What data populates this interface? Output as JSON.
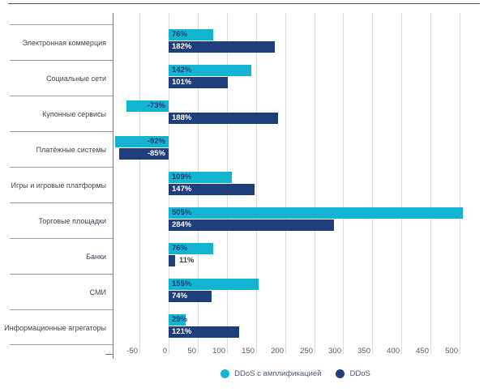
{
  "chart_data": {
    "type": "bar",
    "orientation": "horizontal",
    "title": "",
    "xlabel": "",
    "ylabel": "",
    "unit": "%",
    "categories": [
      "Электронная коммерция",
      "Социальные сети",
      "Купонные сервисы",
      "Платёжные системы",
      "Игры и игровые платформы",
      "Торговые площадки",
      "Банки",
      "СМИ",
      "Информационные агрегаторы"
    ],
    "series": [
      {
        "name": "DDoS с амплификацией",
        "color": "#13b3d1",
        "values": [
          76,
          142,
          -73,
          -92,
          109,
          505,
          76,
          155,
          29
        ],
        "labels": [
          "76%",
          "142%",
          "-73%",
          "-92%",
          "109%",
          "505%",
          "76%",
          "155%",
          "29%"
        ]
      },
      {
        "name": "DDoS",
        "color": "#1e3e7d",
        "values": [
          182,
          101,
          188,
          -85,
          147,
          284,
          11,
          74,
          121
        ],
        "labels": [
          "182%",
          "101%",
          "188%",
          "-85%",
          "147%",
          "284%",
          "11%",
          "74%",
          "121%"
        ]
      }
    ],
    "x_ticks": [
      -50,
      0,
      50,
      100,
      150,
      200,
      250,
      300,
      350,
      400,
      450,
      500
    ],
    "x_tick_labels": [
      "-50",
      "0",
      "50",
      "100",
      "150",
      "200",
      "250",
      "300",
      "350",
      "400",
      "450",
      "500"
    ],
    "xlim": [
      -50,
      500
    ],
    "grid": true,
    "legend_position": "bottom"
  },
  "legend": {
    "items": [
      {
        "label": "DDoS с амплификацией",
        "color": "#13b3d1"
      },
      {
        "label": "DDoS",
        "color": "#1e3e7d"
      }
    ]
  },
  "colors": {
    "amplified_bar": "#13b3d1",
    "ddos_bar": "#1e3e7d",
    "grid_line": "#dcdcdc",
    "divider_line": "#9aa0a4",
    "axis_line": "#75797d",
    "top_border": "#4f4f4f",
    "category_text": "#3f4650",
    "tick_text": "#555d66",
    "legend_text": "#4a5870",
    "value_on_cyan": "#1e3e7d",
    "value_on_navy": "#ffffff",
    "value_outside": "#3f4650"
  }
}
